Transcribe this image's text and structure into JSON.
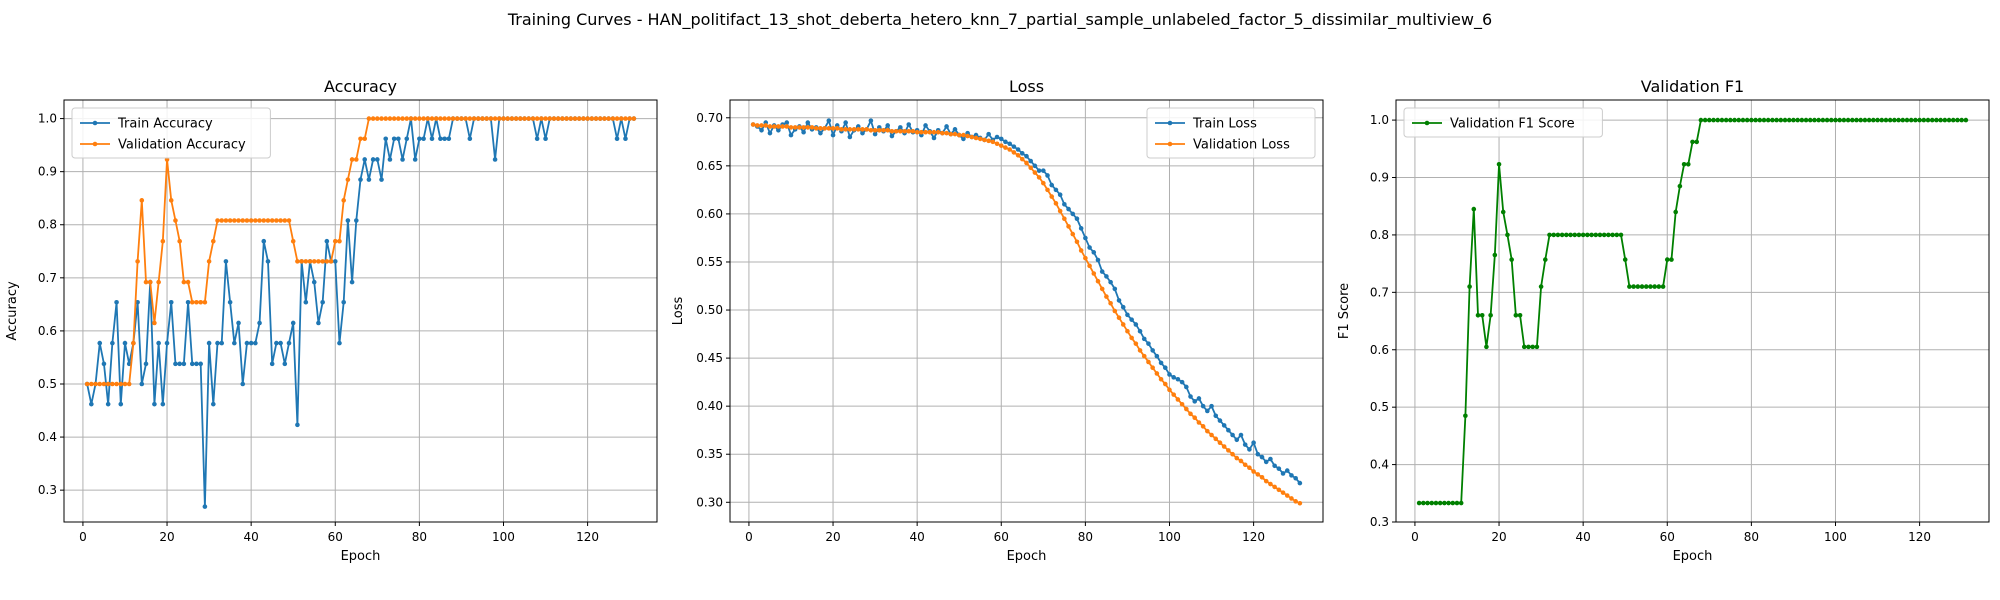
{
  "suptitle": "Training Curves - HAN_politifact_13_shot_deberta_hetero_knn_7_partial_sample_unlabeled_factor_5_dissimilar_multiview_6",
  "colors": {
    "train": "#1f77b4",
    "validation": "#ff7f0e",
    "f1": "#008000",
    "grid": "#b0b0b0"
  },
  "chart_data": [
    {
      "type": "line",
      "title": "Accuracy",
      "xlabel": "Epoch",
      "ylabel": "Accuracy",
      "xlim": [
        -4.5,
        136.5
      ],
      "ylim": [
        0.24,
        1.035
      ],
      "xticks": [
        0,
        20,
        40,
        60,
        80,
        100,
        120
      ],
      "yticks": [
        0.3,
        0.4,
        0.5,
        0.6,
        0.7,
        0.8,
        0.9,
        1.0
      ],
      "grid": true,
      "legend_position": "top-left",
      "series": [
        {
          "name": "Train Accuracy",
          "color": "#1f77b4",
          "x_start": 1,
          "values": [
            0.5,
            0.462,
            0.5,
            0.577,
            0.538,
            0.462,
            0.577,
            0.654,
            0.462,
            0.577,
            0.538,
            0.577,
            0.654,
            0.5,
            0.538,
            0.692,
            0.462,
            0.577,
            0.462,
            0.577,
            0.654,
            0.538,
            0.538,
            0.538,
            0.654,
            0.538,
            0.538,
            0.538,
            0.269,
            0.577,
            0.462,
            0.577,
            0.577,
            0.731,
            0.654,
            0.577,
            0.615,
            0.5,
            0.577,
            0.577,
            0.577,
            0.615,
            0.769,
            0.731,
            0.538,
            0.577,
            0.577,
            0.538,
            0.577,
            0.615,
            0.423,
            0.731,
            0.654,
            0.731,
            0.692,
            0.615,
            0.654,
            0.769,
            0.731,
            0.731,
            0.577,
            0.654,
            0.808,
            0.692,
            0.808,
            0.885,
            0.923,
            0.885,
            0.923,
            0.923,
            0.885,
            0.962,
            0.923,
            0.962,
            0.962,
            0.923,
            0.962,
            1.0,
            0.923,
            0.962,
            0.962,
            1.0,
            0.962,
            1.0,
            0.962,
            0.962,
            0.962,
            1.0,
            1.0,
            1.0,
            1.0,
            0.962,
            1.0,
            1.0,
            1.0,
            1.0,
            1.0,
            0.923,
            1.0,
            1.0,
            1.0,
            1.0,
            1.0,
            1.0,
            1.0,
            1.0,
            1.0,
            0.962,
            1.0,
            0.962,
            1.0,
            1.0,
            1.0,
            1.0,
            1.0,
            1.0,
            1.0,
            1.0,
            1.0,
            1.0,
            1.0,
            1.0,
            1.0,
            1.0,
            1.0,
            1.0,
            0.962,
            1.0,
            0.962,
            1.0,
            1.0
          ]
        },
        {
          "name": "Validation Accuracy",
          "color": "#ff7f0e",
          "x_start": 1,
          "values": [
            0.5,
            0.5,
            0.5,
            0.5,
            0.5,
            0.5,
            0.5,
            0.5,
            0.5,
            0.5,
            0.5,
            0.577,
            0.731,
            0.846,
            0.692,
            0.692,
            0.615,
            0.692,
            0.769,
            0.923,
            0.846,
            0.808,
            0.769,
            0.692,
            0.692,
            0.654,
            0.654,
            0.654,
            0.654,
            0.731,
            0.769,
            0.808,
            0.808,
            0.808,
            0.808,
            0.808,
            0.808,
            0.808,
            0.808,
            0.808,
            0.808,
            0.808,
            0.808,
            0.808,
            0.808,
            0.808,
            0.808,
            0.808,
            0.808,
            0.769,
            0.731,
            0.731,
            0.731,
            0.731,
            0.731,
            0.731,
            0.731,
            0.731,
            0.731,
            0.769,
            0.769,
            0.846,
            0.885,
            0.923,
            0.923,
            0.962,
            0.962,
            1.0,
            1.0,
            1.0,
            1.0,
            1.0,
            1.0,
            1.0,
            1.0,
            1.0,
            1.0,
            1.0,
            1.0,
            1.0,
            1.0,
            1.0,
            1.0,
            1.0,
            1.0,
            1.0,
            1.0,
            1.0,
            1.0,
            1.0,
            1.0,
            1.0,
            1.0,
            1.0,
            1.0,
            1.0,
            1.0,
            1.0,
            1.0,
            1.0,
            1.0,
            1.0,
            1.0,
            1.0,
            1.0,
            1.0,
            1.0,
            1.0,
            1.0,
            1.0,
            1.0,
            1.0,
            1.0,
            1.0,
            1.0,
            1.0,
            1.0,
            1.0,
            1.0,
            1.0,
            1.0,
            1.0,
            1.0,
            1.0,
            1.0,
            1.0,
            1.0,
            1.0,
            1.0,
            1.0,
            1.0
          ]
        }
      ]
    },
    {
      "type": "line",
      "title": "Loss",
      "xlabel": "Epoch",
      "ylabel": "Loss",
      "xlim": [
        -4.5,
        136.5
      ],
      "ylim": [
        0.2795,
        0.7185
      ],
      "xticks": [
        0,
        20,
        40,
        60,
        80,
        100,
        120
      ],
      "yticks": [
        0.3,
        0.35,
        0.4,
        0.45,
        0.5,
        0.55,
        0.6,
        0.65,
        0.7
      ],
      "grid": true,
      "legend_position": "top-right",
      "series": [
        {
          "name": "Train Loss",
          "color": "#1f77b4",
          "x_start": 1,
          "values": [
            0.693,
            0.691,
            0.687,
            0.695,
            0.684,
            0.692,
            0.687,
            0.693,
            0.695,
            0.682,
            0.688,
            0.691,
            0.685,
            0.695,
            0.688,
            0.69,
            0.684,
            0.689,
            0.697,
            0.682,
            0.692,
            0.686,
            0.695,
            0.68,
            0.687,
            0.691,
            0.684,
            0.688,
            0.697,
            0.683,
            0.69,
            0.686,
            0.692,
            0.681,
            0.686,
            0.69,
            0.684,
            0.693,
            0.685,
            0.687,
            0.682,
            0.692,
            0.686,
            0.679,
            0.687,
            0.684,
            0.691,
            0.683,
            0.688,
            0.682,
            0.678,
            0.684,
            0.68,
            0.682,
            0.679,
            0.677,
            0.683,
            0.677,
            0.68,
            0.678,
            0.675,
            0.673,
            0.67,
            0.667,
            0.663,
            0.66,
            0.655,
            0.65,
            0.645,
            0.645,
            0.64,
            0.63,
            0.625,
            0.62,
            0.61,
            0.605,
            0.6,
            0.595,
            0.585,
            0.575,
            0.565,
            0.56,
            0.552,
            0.54,
            0.535,
            0.529,
            0.522,
            0.51,
            0.503,
            0.495,
            0.49,
            0.485,
            0.478,
            0.47,
            0.465,
            0.458,
            0.452,
            0.445,
            0.44,
            0.433,
            0.43,
            0.428,
            0.425,
            0.42,
            0.41,
            0.405,
            0.408,
            0.4,
            0.395,
            0.4,
            0.39,
            0.385,
            0.38,
            0.375,
            0.37,
            0.365,
            0.37,
            0.36,
            0.355,
            0.362,
            0.35,
            0.347,
            0.342,
            0.345,
            0.338,
            0.335,
            0.33,
            0.333,
            0.328,
            0.325,
            0.32
          ]
        },
        {
          "name": "Validation Loss",
          "color": "#ff7f0e",
          "x_start": 1,
          "values": [
            0.693,
            0.692,
            0.692,
            0.692,
            0.691,
            0.691,
            0.691,
            0.691,
            0.691,
            0.69,
            0.69,
            0.69,
            0.69,
            0.69,
            0.69,
            0.689,
            0.689,
            0.689,
            0.689,
            0.689,
            0.689,
            0.688,
            0.688,
            0.688,
            0.688,
            0.688,
            0.688,
            0.688,
            0.687,
            0.687,
            0.687,
            0.687,
            0.687,
            0.686,
            0.686,
            0.686,
            0.686,
            0.686,
            0.686,
            0.685,
            0.685,
            0.685,
            0.685,
            0.685,
            0.685,
            0.684,
            0.684,
            0.683,
            0.683,
            0.682,
            0.682,
            0.681,
            0.68,
            0.679,
            0.678,
            0.677,
            0.676,
            0.675,
            0.673,
            0.671,
            0.669,
            0.667,
            0.664,
            0.661,
            0.657,
            0.653,
            0.648,
            0.643,
            0.638,
            0.632,
            0.625,
            0.618,
            0.611,
            0.603,
            0.595,
            0.587,
            0.579,
            0.571,
            0.562,
            0.554,
            0.546,
            0.538,
            0.53,
            0.522,
            0.514,
            0.507,
            0.499,
            0.492,
            0.485,
            0.478,
            0.471,
            0.465,
            0.458,
            0.452,
            0.446,
            0.44,
            0.434,
            0.428,
            0.423,
            0.417,
            0.412,
            0.407,
            0.402,
            0.397,
            0.392,
            0.388,
            0.383,
            0.379,
            0.374,
            0.37,
            0.366,
            0.362,
            0.358,
            0.354,
            0.35,
            0.346,
            0.343,
            0.339,
            0.336,
            0.332,
            0.329,
            0.326,
            0.322,
            0.319,
            0.316,
            0.313,
            0.31,
            0.307,
            0.304,
            0.301,
            0.299
          ]
        }
      ]
    },
    {
      "type": "line",
      "title": "Validation F1",
      "xlabel": "Epoch",
      "ylabel": "F1 Score",
      "xlim": [
        -4.5,
        136.5
      ],
      "ylim": [
        0.3,
        1.035
      ],
      "xticks": [
        0,
        20,
        40,
        60,
        80,
        100,
        120
      ],
      "yticks": [
        0.3,
        0.4,
        0.5,
        0.6,
        0.7,
        0.8,
        0.9,
        1.0
      ],
      "grid": true,
      "legend_position": "top-left",
      "series": [
        {
          "name": "Validation F1 Score",
          "color": "#008000",
          "x_start": 1,
          "values": [
            0.333,
            0.333,
            0.333,
            0.333,
            0.333,
            0.333,
            0.333,
            0.333,
            0.333,
            0.333,
            0.333,
            0.485,
            0.71,
            0.845,
            0.66,
            0.66,
            0.605,
            0.66,
            0.765,
            0.923,
            0.84,
            0.8,
            0.757,
            0.66,
            0.66,
            0.605,
            0.605,
            0.605,
            0.605,
            0.71,
            0.757,
            0.8,
            0.8,
            0.8,
            0.8,
            0.8,
            0.8,
            0.8,
            0.8,
            0.8,
            0.8,
            0.8,
            0.8,
            0.8,
            0.8,
            0.8,
            0.8,
            0.8,
            0.8,
            0.757,
            0.71,
            0.71,
            0.71,
            0.71,
            0.71,
            0.71,
            0.71,
            0.71,
            0.71,
            0.757,
            0.757,
            0.84,
            0.885,
            0.923,
            0.923,
            0.962,
            0.962,
            1.0,
            1.0,
            1.0,
            1.0,
            1.0,
            1.0,
            1.0,
            1.0,
            1.0,
            1.0,
            1.0,
            1.0,
            1.0,
            1.0,
            1.0,
            1.0,
            1.0,
            1.0,
            1.0,
            1.0,
            1.0,
            1.0,
            1.0,
            1.0,
            1.0,
            1.0,
            1.0,
            1.0,
            1.0,
            1.0,
            1.0,
            1.0,
            1.0,
            1.0,
            1.0,
            1.0,
            1.0,
            1.0,
            1.0,
            1.0,
            1.0,
            1.0,
            1.0,
            1.0,
            1.0,
            1.0,
            1.0,
            1.0,
            1.0,
            1.0,
            1.0,
            1.0,
            1.0,
            1.0,
            1.0,
            1.0,
            1.0,
            1.0,
            1.0,
            1.0,
            1.0,
            1.0,
            1.0,
            1.0
          ]
        }
      ]
    }
  ]
}
